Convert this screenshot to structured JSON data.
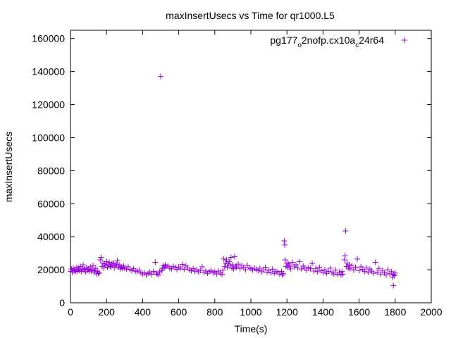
{
  "chart_data": {
    "type": "scatter",
    "title": "maxInsertUsecs vs Time for qr1000.L5",
    "xlabel": "Time(s)",
    "ylabel": "maxInsertUsecs",
    "xlim": [
      0,
      2000
    ],
    "ylim": [
      0,
      165000
    ],
    "x_ticks": [
      0,
      200,
      400,
      600,
      800,
      1000,
      1200,
      1400,
      1600,
      1800,
      2000
    ],
    "y_ticks": [
      0,
      20000,
      40000,
      60000,
      80000,
      100000,
      120000,
      140000,
      160000
    ],
    "grid": false,
    "legend_position": "top-right",
    "marker_color": "#9400d3",
    "series": [
      {
        "name": "pg177_o2nofp.cx10a_c24r64",
        "marker": "plus",
        "points": [
          [
            0,
            19000
          ],
          [
            5,
            20500
          ],
          [
            10,
            18500
          ],
          [
            15,
            21000
          ],
          [
            20,
            19500
          ],
          [
            25,
            20000
          ],
          [
            30,
            18800
          ],
          [
            35,
            21500
          ],
          [
            40,
            19200
          ],
          [
            45,
            20800
          ],
          [
            50,
            19600
          ],
          [
            55,
            22000
          ],
          [
            60,
            18900
          ],
          [
            65,
            20300
          ],
          [
            70,
            23000
          ],
          [
            75,
            19800
          ],
          [
            80,
            20600
          ],
          [
            85,
            18700
          ],
          [
            90,
            21200
          ],
          [
            95,
            19900
          ],
          [
            100,
            20400
          ],
          [
            105,
            19100
          ],
          [
            110,
            21800
          ],
          [
            115,
            19300
          ],
          [
            120,
            20100
          ],
          [
            125,
            22500
          ],
          [
            130,
            18600
          ],
          [
            135,
            19700
          ],
          [
            140,
            20900
          ],
          [
            145,
            17500
          ],
          [
            150,
            19000
          ],
          [
            155,
            17800
          ],
          [
            160,
            18200
          ],
          [
            165,
            26000
          ],
          [
            170,
            27500
          ],
          [
            175,
            22000
          ],
          [
            180,
            24000
          ],
          [
            185,
            21000
          ],
          [
            190,
            23500
          ],
          [
            195,
            22500
          ],
          [
            200,
            25000
          ],
          [
            205,
            21500
          ],
          [
            210,
            23000
          ],
          [
            215,
            24500
          ],
          [
            220,
            22200
          ],
          [
            225,
            21800
          ],
          [
            230,
            23800
          ],
          [
            235,
            22600
          ],
          [
            240,
            24200
          ],
          [
            245,
            21200
          ],
          [
            250,
            22800
          ],
          [
            255,
            23400
          ],
          [
            260,
            25500
          ],
          [
            265,
            21600
          ],
          [
            270,
            22900
          ],
          [
            275,
            20500
          ],
          [
            280,
            22100
          ],
          [
            285,
            21400
          ],
          [
            290,
            20800
          ],
          [
            295,
            22300
          ],
          [
            300,
            21000
          ],
          [
            310,
            20400
          ],
          [
            320,
            21800
          ],
          [
            330,
            20200
          ],
          [
            340,
            19500
          ],
          [
            350,
            20600
          ],
          [
            360,
            19200
          ],
          [
            370,
            18800
          ],
          [
            380,
            19900
          ],
          [
            390,
            18300
          ],
          [
            400,
            17500
          ],
          [
            410,
            18200
          ],
          [
            420,
            16800
          ],
          [
            430,
            17700
          ],
          [
            440,
            18500
          ],
          [
            450,
            17200
          ],
          [
            460,
            19000
          ],
          [
            470,
            24500
          ],
          [
            475,
            18000
          ],
          [
            480,
            17300
          ],
          [
            490,
            16900
          ],
          [
            495,
            18800
          ],
          [
            500,
            137000
          ],
          [
            505,
            19500
          ],
          [
            510,
            20800
          ],
          [
            515,
            22500
          ],
          [
            520,
            21200
          ],
          [
            525,
            23000
          ],
          [
            530,
            21800
          ],
          [
            540,
            22300
          ],
          [
            550,
            21000
          ],
          [
            560,
            20500
          ],
          [
            570,
            22000
          ],
          [
            580,
            21400
          ],
          [
            590,
            20200
          ],
          [
            600,
            21700
          ],
          [
            610,
            20900
          ],
          [
            620,
            23200
          ],
          [
            630,
            20300
          ],
          [
            640,
            22400
          ],
          [
            650,
            21100
          ],
          [
            660,
            20000
          ],
          [
            670,
            19400
          ],
          [
            680,
            20600
          ],
          [
            690,
            19100
          ],
          [
            700,
            20000
          ],
          [
            710,
            18700
          ],
          [
            720,
            19600
          ],
          [
            730,
            21800
          ],
          [
            740,
            18400
          ],
          [
            750,
            19300
          ],
          [
            760,
            17800
          ],
          [
            770,
            18900
          ],
          [
            780,
            19500
          ],
          [
            790,
            18200
          ],
          [
            800,
            18800
          ],
          [
            810,
            17500
          ],
          [
            820,
            19200
          ],
          [
            830,
            18000
          ],
          [
            840,
            17200
          ],
          [
            845,
            19800
          ],
          [
            850,
            26500
          ],
          [
            855,
            22000
          ],
          [
            860,
            24000
          ],
          [
            865,
            26000
          ],
          [
            870,
            21500
          ],
          [
            875,
            23500
          ],
          [
            880,
            25000
          ],
          [
            885,
            22500
          ],
          [
            890,
            27500
          ],
          [
            895,
            21000
          ],
          [
            900,
            23000
          ],
          [
            905,
            20500
          ],
          [
            910,
            28000
          ],
          [
            915,
            22200
          ],
          [
            920,
            21600
          ],
          [
            930,
            23400
          ],
          [
            940,
            20800
          ],
          [
            950,
            22600
          ],
          [
            960,
            21400
          ],
          [
            970,
            20000
          ],
          [
            980,
            22800
          ],
          [
            990,
            21200
          ],
          [
            1000,
            20600
          ],
          [
            1010,
            19800
          ],
          [
            1020,
            21000
          ],
          [
            1030,
            20200
          ],
          [
            1040,
            19400
          ],
          [
            1050,
            20900
          ],
          [
            1060,
            18800
          ],
          [
            1070,
            19900
          ],
          [
            1080,
            21500
          ],
          [
            1090,
            18500
          ],
          [
            1100,
            19700
          ],
          [
            1110,
            18200
          ],
          [
            1120,
            20300
          ],
          [
            1130,
            17800
          ],
          [
            1140,
            19100
          ],
          [
            1150,
            18600
          ],
          [
            1160,
            17400
          ],
          [
            1170,
            18900
          ],
          [
            1175,
            16800
          ],
          [
            1180,
            17600
          ],
          [
            1185,
            37500
          ],
          [
            1188,
            35000
          ],
          [
            1190,
            26000
          ],
          [
            1195,
            22000
          ],
          [
            1200,
            24000
          ],
          [
            1205,
            21500
          ],
          [
            1210,
            23500
          ],
          [
            1215,
            22500
          ],
          [
            1220,
            20500
          ],
          [
            1230,
            24500
          ],
          [
            1240,
            21800
          ],
          [
            1250,
            23000
          ],
          [
            1260,
            21200
          ],
          [
            1270,
            25000
          ],
          [
            1280,
            20400
          ],
          [
            1290,
            22200
          ],
          [
            1300,
            21000
          ],
          [
            1310,
            19600
          ],
          [
            1320,
            21400
          ],
          [
            1330,
            20600
          ],
          [
            1340,
            23800
          ],
          [
            1350,
            19200
          ],
          [
            1360,
            20800
          ],
          [
            1370,
            18800
          ],
          [
            1380,
            21600
          ],
          [
            1390,
            19400
          ],
          [
            1400,
            18400
          ],
          [
            1410,
            20000
          ],
          [
            1420,
            17800
          ],
          [
            1430,
            19000
          ],
          [
            1440,
            21000
          ],
          [
            1450,
            18200
          ],
          [
            1460,
            17500
          ],
          [
            1470,
            19800
          ],
          [
            1480,
            17200
          ],
          [
            1490,
            18600
          ],
          [
            1500,
            16800
          ],
          [
            1505,
            18900
          ],
          [
            1510,
            17400
          ],
          [
            1520,
            26000
          ],
          [
            1522,
            28500
          ],
          [
            1525,
            43500
          ],
          [
            1530,
            22000
          ],
          [
            1535,
            24000
          ],
          [
            1540,
            21000
          ],
          [
            1545,
            23000
          ],
          [
            1550,
            20500
          ],
          [
            1560,
            22500
          ],
          [
            1570,
            19800
          ],
          [
            1580,
            21500
          ],
          [
            1590,
            26500
          ],
          [
            1600,
            19500
          ],
          [
            1610,
            21800
          ],
          [
            1620,
            20200
          ],
          [
            1630,
            19000
          ],
          [
            1640,
            21200
          ],
          [
            1650,
            18500
          ],
          [
            1660,
            20400
          ],
          [
            1670,
            19200
          ],
          [
            1680,
            17900
          ],
          [
            1690,
            24500
          ],
          [
            1700,
            18600
          ],
          [
            1710,
            20800
          ],
          [
            1720,
            17400
          ],
          [
            1730,
            19600
          ],
          [
            1740,
            18100
          ],
          [
            1750,
            16900
          ],
          [
            1760,
            20000
          ],
          [
            1770,
            17600
          ],
          [
            1780,
            18800
          ],
          [
            1785,
            15500
          ],
          [
            1790,
            17200
          ],
          [
            1795,
            16400
          ],
          [
            1800,
            18000
          ],
          [
            1790,
            10500
          ]
        ]
      }
    ]
  }
}
